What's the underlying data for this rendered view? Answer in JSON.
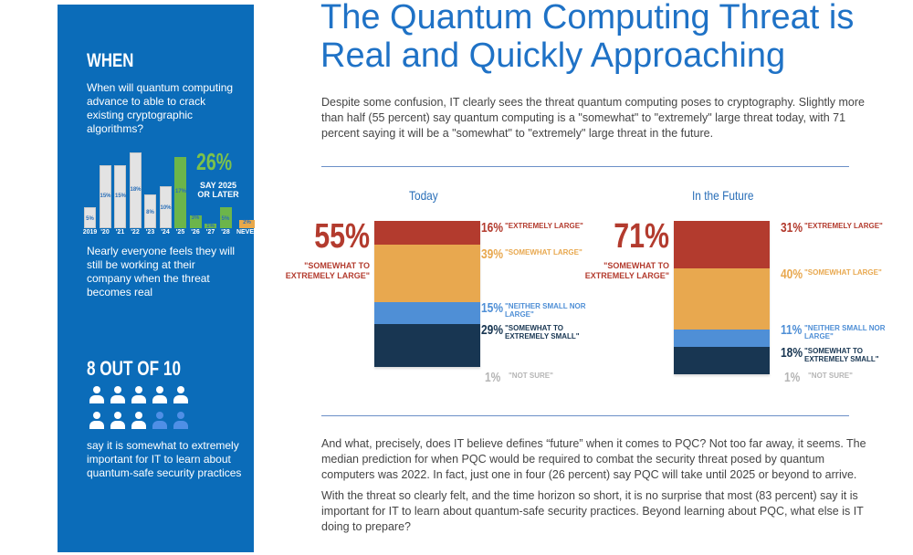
{
  "sidebar": {
    "when_title": "WHEN",
    "when_question": "When will quantum computing advance to able to crack existing cryptographic algorithms?",
    "chart_data": {
      "type": "bar",
      "categories": [
        "2019",
        "'20",
        "'21",
        "'22",
        "'23",
        "'24",
        "'25",
        "'26",
        "'27",
        "'28",
        "NEVER"
      ],
      "values": [
        5,
        15,
        15,
        18,
        8,
        10,
        17,
        3,
        1,
        5,
        2
      ],
      "value_labels": [
        "5%",
        "15%",
        "15%",
        "18%",
        "8%",
        "10%",
        "17%",
        "3%",
        "1%",
        "5%",
        "2%"
      ],
      "colors": [
        "#e3e3e3",
        "#e3e3e3",
        "#e3e3e3",
        "#e3e3e3",
        "#e3e3e3",
        "#e3e3e3",
        "#6cb54a",
        "#6cb54a",
        "#6cb54a",
        "#6cb54a",
        "#e8a84a"
      ]
    },
    "highlight_pct": "26%",
    "highlight_text": "SAY 2025 OR LATER",
    "stay_text": "Nearly everyone feels they will still be working at their company when the threat becomes real",
    "stat_title": "8 OUT OF 10",
    "people": {
      "total": 10,
      "highlighted": 8
    },
    "stat_text": "say it is somewhat to extremely important for IT to learn about quantum-safe security practices"
  },
  "main": {
    "title": "The Quantum Computing Threat is Real and Quickly Approaching",
    "intro": "Despite some confusion, IT clearly sees the threat quantum computing poses to cryptography. Slightly more than half (55 percent) say quantum computing is a \"somewhat\" to \"extremely\" large threat today, with 71 percent saying it will be a \"somewhat\" to \"extremely\" large threat in the future.",
    "para2": "And what, precisely, does IT believe defines “future” when it comes to PQC?  Not too far away, it seems. The median prediction for when PQC would be required to combat the security threat posed by quantum computers was 2022. In fact, just one in four (26 percent) say PQC will take until 2025 or beyond to arrive.",
    "para3": "With the threat so clearly felt, and the time horizon so short, it is no surprise that most (83 percent) say it is important for IT to learn about quantum-safe security practices. Beyond learning about PQC, what else is IT doing to prepare?"
  },
  "chart_data": [
    {
      "type": "bar",
      "stacked": true,
      "title": "Today",
      "big_pct": "55%",
      "big_label": "\"SOMEWHAT TO EXTREMELY LARGE\"",
      "series": [
        {
          "name": "\"EXTREMELY LARGE\"",
          "value": 16,
          "label": "16%",
          "color": "#b33b2e"
        },
        {
          "name": "\"SOMEWHAT LARGE\"",
          "value": 39,
          "label": "39%",
          "color": "#e8a84f"
        },
        {
          "name": "\"NEITHER SMALL NOR LARGE\"",
          "value": 15,
          "label": "15%",
          "color": "#4f8fd6"
        },
        {
          "name": "\"SOMEWHAT TO EXTREMELY SMALL\"",
          "value": 29,
          "label": "29%",
          "color": "#183652"
        },
        {
          "name": "\"NOT SURE\"",
          "value": 1,
          "label": "1%",
          "color": "#b5b5b5"
        }
      ]
    },
    {
      "type": "bar",
      "stacked": true,
      "title": "In the Future",
      "big_pct": "71%",
      "big_label": "\"SOMEWHAT TO EXTREMELY LARGE\"",
      "series": [
        {
          "name": "\"EXTREMELY LARGE\"",
          "value": 31,
          "label": "31%",
          "color": "#b33b2e"
        },
        {
          "name": "\"SOMEWHAT LARGE\"",
          "value": 40,
          "label": "40%",
          "color": "#e8a84f"
        },
        {
          "name": "\"NEITHER SMALL NOR LARGE\"",
          "value": 11,
          "label": "11%",
          "color": "#4f8fd6"
        },
        {
          "name": "\"SOMEWHAT TO EXTREMELY SMALL\"",
          "value": 18,
          "label": "18%",
          "color": "#183652"
        },
        {
          "name": "\"NOT SURE\"",
          "value": 1,
          "label": "1%",
          "color": "#b5b5b5"
        }
      ]
    }
  ]
}
